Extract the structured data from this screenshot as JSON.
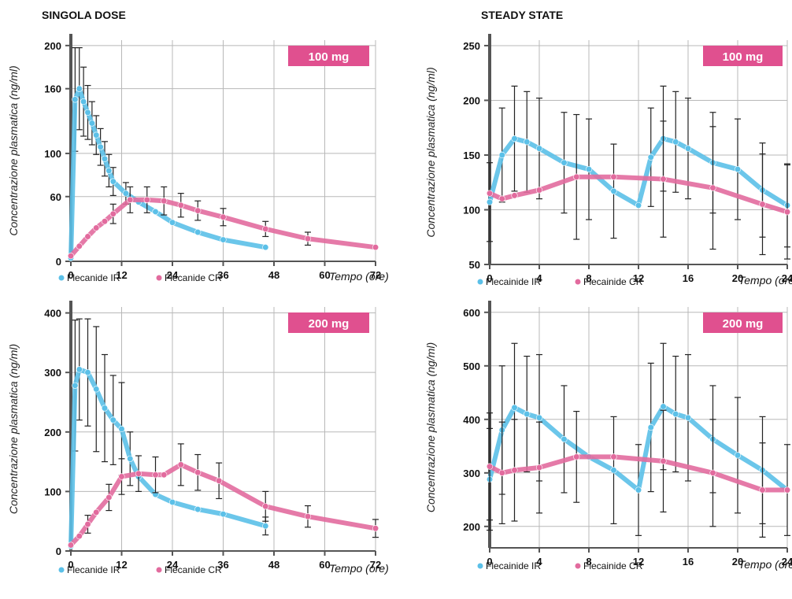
{
  "sections": {
    "single_dose": "SINGOLA DOSE",
    "steady_state": "STEADY STATE"
  },
  "colors": {
    "ir": "#5bc0e8",
    "cr": "#e26b9e",
    "badge": "#e0508f",
    "grid": "#b8b8b8",
    "axis": "#555555",
    "err": "#222222"
  },
  "chart_data": [
    {
      "type": "line",
      "badge": "100 mg",
      "ylabel": "Concentrazione plasmatica (ng/ml)",
      "xlabel": "Tempo (ore)",
      "xticks": [
        0,
        12,
        24,
        36,
        48,
        60,
        72
      ],
      "yticks": [
        0,
        60,
        100,
        160,
        200
      ],
      "ylim": [
        0,
        205
      ],
      "xlim": [
        0,
        72
      ],
      "legend": [
        "Flecanide IR",
        "Flecanide CR"
      ],
      "series": [
        {
          "name": "Flecanide IR",
          "x": [
            0,
            1,
            2,
            3,
            4,
            5,
            6,
            7,
            8,
            9,
            10,
            13,
            16,
            20,
            24,
            30,
            36,
            46
          ],
          "y": [
            3,
            150,
            160,
            148,
            138,
            128,
            117,
            106,
            95,
            84,
            74,
            63,
            55,
            46,
            36,
            27,
            20,
            13
          ],
          "err": [
            null,
            48,
            38,
            32,
            25,
            20,
            18,
            17,
            16,
            15,
            13,
            10,
            null,
            null,
            null,
            null,
            null,
            null
          ]
        },
        {
          "name": "Flecanide CR",
          "x": [
            0,
            2,
            4,
            6,
            8,
            10,
            14,
            18,
            22,
            26,
            30,
            36,
            46,
            56,
            72
          ],
          "y": [
            5,
            14,
            23,
            31,
            37,
            44,
            57,
            57,
            56,
            52,
            47,
            41,
            30,
            21,
            13
          ],
          "err": [
            null,
            null,
            null,
            null,
            null,
            9,
            12,
            12,
            13,
            11,
            9,
            8,
            7,
            6,
            null
          ]
        }
      ]
    },
    {
      "type": "line",
      "badge": "100 mg",
      "ylabel": "Concentrazione plasmatica (ng/ml)",
      "xlabel": "Tempo (ore)",
      "xticks": [
        0,
        4,
        8,
        12,
        16,
        20,
        24
      ],
      "yticks": [
        50,
        100,
        150,
        200,
        250
      ],
      "ylim": [
        50,
        255
      ],
      "xlim": [
        0,
        24
      ],
      "legend": [
        "Flecainide IR",
        "Flecainide CR"
      ],
      "series": [
        {
          "name": "Flecainide IR",
          "x": [
            0,
            1,
            2,
            3,
            4,
            6,
            8,
            10,
            12,
            13,
            14,
            15,
            16,
            18,
            20,
            22,
            24
          ],
          "y": [
            107,
            150,
            165,
            162,
            156,
            143,
            137,
            117,
            104,
            148,
            165,
            162,
            156,
            143,
            137,
            118,
            104
          ],
          "err": [
            36,
            43,
            48,
            46,
            46,
            46,
            46,
            43,
            null,
            45,
            48,
            46,
            46,
            46,
            46,
            43,
            38
          ]
        },
        {
          "name": "Flecainide CR",
          "x": [
            0,
            1,
            2,
            4,
            7,
            10,
            14,
            18,
            22,
            24
          ],
          "y": [
            115,
            110,
            113,
            118,
            130,
            130,
            128,
            120,
            105,
            98
          ],
          "err": [
            null,
            null,
            null,
            null,
            57,
            null,
            53,
            56,
            46,
            43
          ]
        }
      ]
    },
    {
      "type": "line",
      "badge": "200 mg",
      "ylabel": "Concentrazione plasmatica (ng/ml)",
      "xlabel": "Tempo (ore)",
      "xticks": [
        0,
        12,
        24,
        36,
        48,
        60,
        72
      ],
      "yticks": [
        0,
        100,
        200,
        300,
        400
      ],
      "ylim": [
        0,
        410
      ],
      "xlim": [
        0,
        72
      ],
      "legend": [
        "Flecanide IR",
        "Flecanide CR"
      ],
      "series": [
        {
          "name": "Flecanide IR",
          "x": [
            0,
            1,
            2,
            4,
            6,
            8,
            10,
            12,
            14,
            16,
            20,
            24,
            30,
            36,
            46
          ],
          "y": [
            8,
            278,
            305,
            300,
            272,
            240,
            220,
            205,
            155,
            125,
            95,
            82,
            70,
            62,
            42
          ],
          "err": [
            null,
            110,
            85,
            90,
            105,
            90,
            75,
            78,
            45,
            null,
            null,
            null,
            null,
            null,
            15
          ]
        },
        {
          "name": "Flecanide CR",
          "x": [
            0,
            2,
            4,
            6,
            9,
            12,
            16,
            20,
            22,
            26,
            30,
            35,
            46,
            56,
            72
          ],
          "y": [
            10,
            25,
            45,
            65,
            90,
            125,
            130,
            128,
            128,
            145,
            132,
            118,
            75,
            58,
            38
          ],
          "err": [
            null,
            null,
            15,
            null,
            22,
            30,
            30,
            30,
            null,
            35,
            30,
            30,
            25,
            18,
            15
          ]
        }
      ]
    },
    {
      "type": "line",
      "badge": "200 mg",
      "ylabel": "Concentrazione plasmatica (ng/ml)",
      "xlabel": "Tempo (ore)",
      "xticks": [
        0,
        4,
        8,
        12,
        16,
        20,
        24
      ],
      "yticks": [
        200,
        300,
        400,
        500,
        600
      ],
      "ylim": [
        160,
        610
      ],
      "xlim": [
        0,
        24
      ],
      "legend": [
        "Flecainide IR",
        "Flecainide CR"
      ],
      "series": [
        {
          "name": "Flecainide IR",
          "x": [
            0,
            1,
            2,
            3,
            4,
            6,
            8,
            10,
            12,
            13,
            14,
            15,
            16,
            18,
            20,
            22,
            24
          ],
          "y": [
            288,
            380,
            422,
            410,
            403,
            363,
            330,
            305,
            268,
            385,
            424,
            410,
            403,
            363,
            333,
            305,
            268
          ],
          "err": [
            95,
            120,
            120,
            108,
            118,
            100,
            null,
            100,
            85,
            120,
            118,
            108,
            118,
            100,
            108,
            100,
            85
          ]
        },
        {
          "name": "Flecainide CR",
          "x": [
            0,
            1,
            2,
            4,
            7,
            10,
            14,
            18,
            22,
            24
          ],
          "y": [
            312,
            300,
            305,
            310,
            330,
            330,
            322,
            300,
            268,
            268
          ],
          "err": [
            100,
            95,
            95,
            85,
            85,
            null,
            95,
            100,
            88,
            null
          ]
        }
      ]
    }
  ]
}
